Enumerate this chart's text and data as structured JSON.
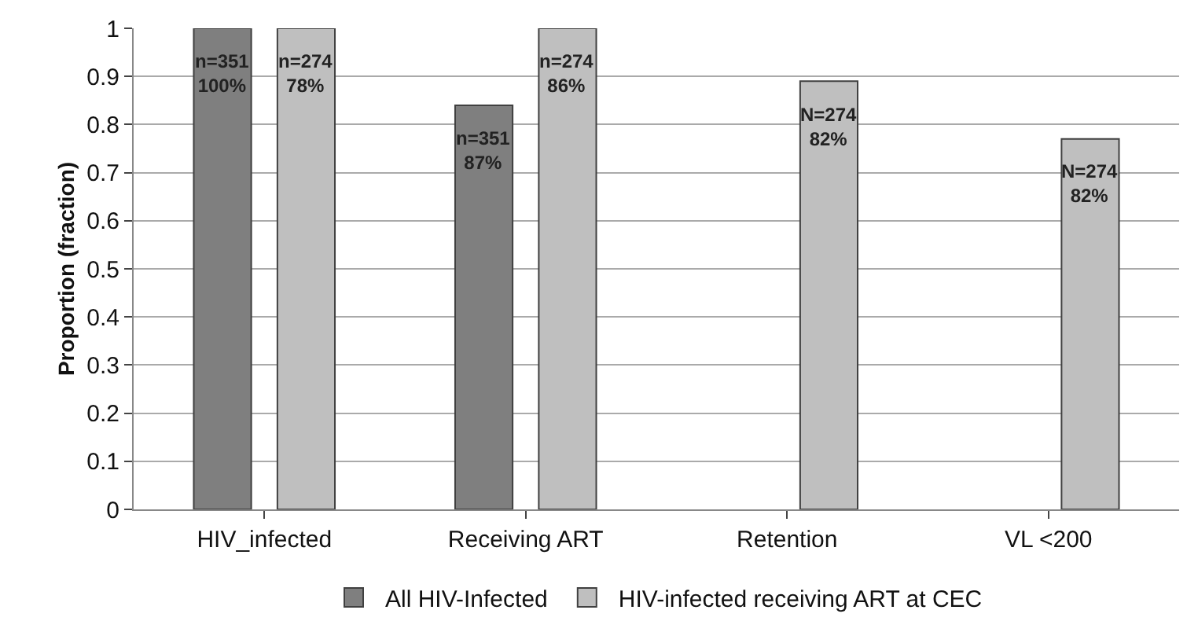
{
  "chart_data": {
    "type": "bar",
    "ylabel": "Proportion (fraction)",
    "categories": [
      "HIV_infected",
      "Receiving ART",
      "Retention",
      "VL <200"
    ],
    "series": [
      {
        "name": "All HIV-Infected",
        "color": "#7f7f7f",
        "values": [
          1.0,
          0.84,
          null,
          null
        ]
      },
      {
        "name": "HIV-infected receiving ART at CEC",
        "color": "#bfbfbf",
        "values": [
          1.0,
          1.0,
          0.89,
          0.77
        ]
      }
    ],
    "ylim": [
      0,
      1
    ],
    "yticks": [
      0,
      0.1,
      0.2,
      0.3,
      0.4,
      0.5,
      0.6,
      0.7,
      0.8,
      0.9,
      1
    ],
    "grid": "y",
    "legend": "bottom",
    "annotations": [
      "n=351\n100%",
      "n=274\n78%",
      "n=351\n87%",
      "n=274\n86%",
      "N=274\n82%",
      "N=274\n82%"
    ]
  }
}
